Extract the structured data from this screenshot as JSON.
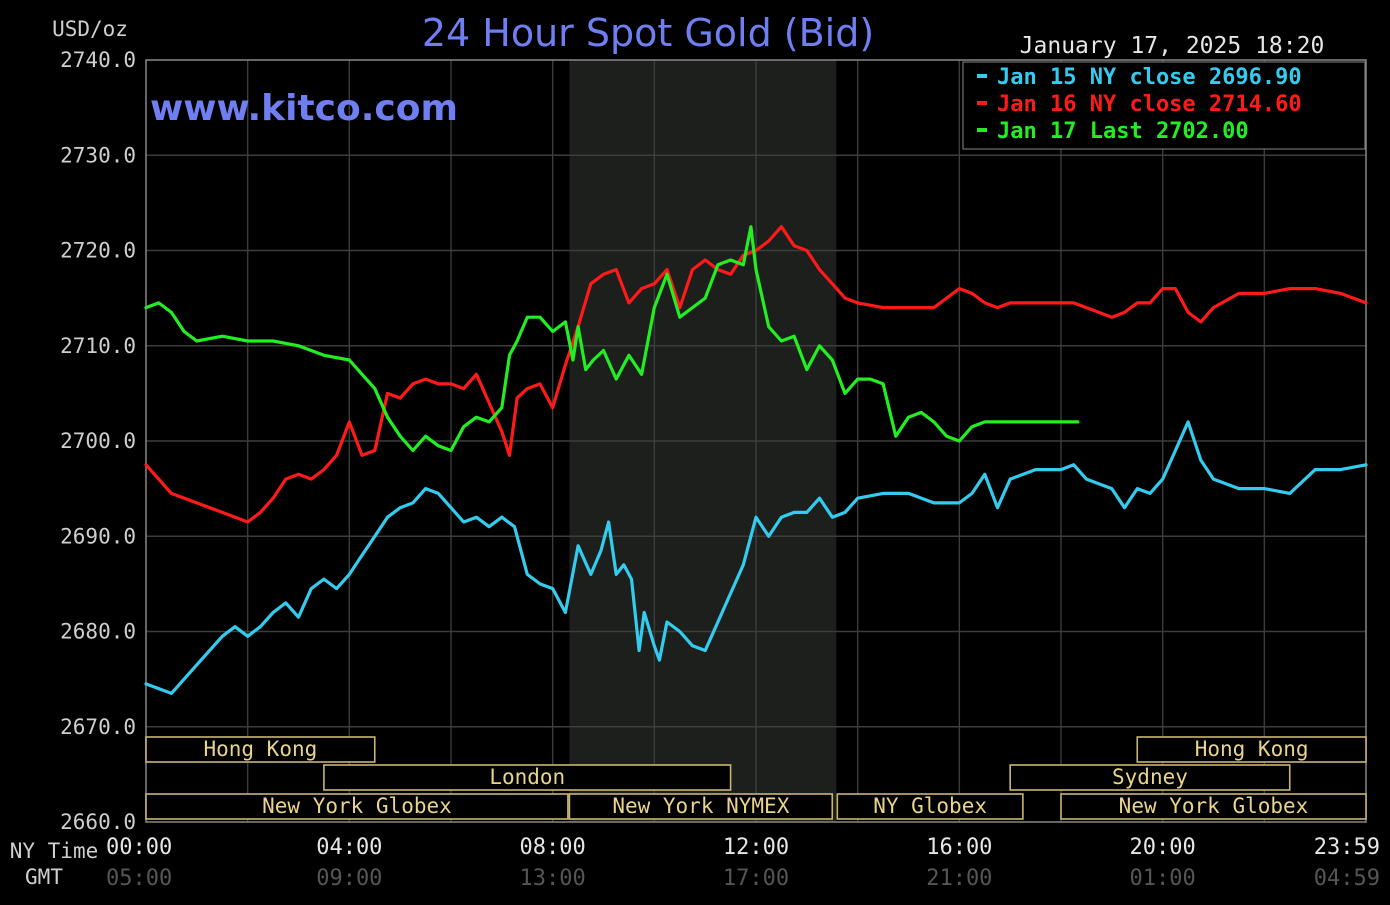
{
  "chart_data": {
    "type": "line",
    "title": "24 Hour Spot Gold (Bid)",
    "unit_label": "USD/oz",
    "watermark": "www.kitco.com",
    "timestamp": "January 17, 2025 18:20",
    "ylim": [
      2660,
      2740
    ],
    "y_ticks": [
      "2740.0",
      "2730.0",
      "2720.0",
      "2710.0",
      "2700.0",
      "2690.0",
      "2680.0",
      "2670.0",
      "2660.0"
    ],
    "x_axis_ny_label": "NY Time",
    "x_axis_gmt_label": "GMT",
    "x_ticks_ny": [
      "00:00",
      "04:00",
      "08:00",
      "12:00",
      "16:00",
      "20:00",
      "23:59"
    ],
    "x_ticks_gmt": [
      "05:00",
      "09:00",
      "13:00",
      "17:00",
      "21:00",
      "01:00",
      "04:59"
    ],
    "x_tick_hours": [
      0,
      4,
      8,
      12,
      16,
      20,
      24
    ],
    "shaded_period_hours": [
      8.33,
      13.58
    ],
    "grid": true,
    "legend": [
      {
        "label": "Jan 15 NY close 2696.90",
        "color": "#33ccee"
      },
      {
        "label": "Jan 16 NY close 2714.60",
        "color": "#ff1a1a"
      },
      {
        "label": "Jan 17 Last 2702.00",
        "color": "#22ee22"
      }
    ],
    "sessions": [
      {
        "label": "Hong Kong",
        "start": 0,
        "end": 4.5
      },
      {
        "label": "Hong Kong",
        "start": 19.5,
        "end": 24
      },
      {
        "label": "London",
        "start": 3.5,
        "end": 11.5
      },
      {
        "label": "Sydney",
        "start": 17.0,
        "end": 22.5
      },
      {
        "label": "New York Globex",
        "start": 0,
        "end": 8.3
      },
      {
        "label": "New York NYMEX",
        "start": 8.33,
        "end": 13.5
      },
      {
        "label": "NY Globex",
        "start": 13.6,
        "end": 17.25
      },
      {
        "label": "New York Globex",
        "start": 18.0,
        "end": 24
      }
    ],
    "series": [
      {
        "name": "Jan 15",
        "color": "#33ccee",
        "x": [
          0,
          0.5,
          1,
          1.5,
          1.75,
          2,
          2.25,
          2.5,
          2.75,
          3,
          3.25,
          3.5,
          3.75,
          4,
          4.25,
          4.5,
          4.75,
          5,
          5.25,
          5.5,
          5.75,
          6,
          6.25,
          6.5,
          6.75,
          7,
          7.25,
          7.5,
          7.75,
          8,
          8.25,
          8.5,
          8.75,
          8.95,
          9.1,
          9.25,
          9.4,
          9.55,
          9.7,
          9.8,
          10,
          10.1,
          10.25,
          10.5,
          10.75,
          11,
          11.25,
          11.5,
          11.75,
          12,
          12.25,
          12.5,
          12.75,
          13,
          13.25,
          13.5,
          13.75,
          14,
          14.5,
          15,
          15.5,
          16,
          16.25,
          16.5,
          16.75,
          17,
          17.5,
          18,
          18.25,
          18.5,
          19,
          19.25,
          19.5,
          19.75,
          20,
          20.25,
          20.5,
          20.75,
          21,
          21.5,
          22,
          22.5,
          23,
          23.5,
          24
        ],
        "values": [
          2674.5,
          2673.5,
          2676.5,
          2679.5,
          2680.5,
          2679.5,
          2680.5,
          2682,
          2683,
          2681.5,
          2684.5,
          2685.5,
          2684.5,
          2686,
          2688,
          2690,
          2692,
          2693,
          2693.5,
          2695,
          2694.5,
          2693,
          2691.5,
          2692,
          2691,
          2692,
          2691,
          2686,
          2685,
          2684.5,
          2682,
          2689,
          2686,
          2688.5,
          2691.5,
          2686,
          2687,
          2685.5,
          2678,
          2682,
          2678.5,
          2677,
          2681,
          2680,
          2678.5,
          2678,
          2681,
          2684,
          2687,
          2692,
          2690,
          2692,
          2692.5,
          2692.5,
          2694,
          2692,
          2692.5,
          2694,
          2694.5,
          2694.5,
          2693.5,
          2693.5,
          2694.5,
          2696.5,
          2693,
          2696,
          2697,
          2697,
          2697.5,
          2696,
          2695,
          2693,
          2695,
          2694.5,
          2696,
          2699,
          2702,
          2698,
          2696,
          2695,
          2695,
          2694.5,
          2697,
          2697,
          2697.5
        ]
      },
      {
        "name": "Jan 16",
        "color": "#ff1a1a",
        "x": [
          0,
          0.5,
          1,
          1.5,
          2,
          2.25,
          2.5,
          2.75,
          3,
          3.25,
          3.5,
          3.75,
          4,
          4.25,
          4.5,
          4.75,
          5,
          5.25,
          5.5,
          5.75,
          6,
          6.25,
          6.5,
          6.75,
          7,
          7.15,
          7.3,
          7.5,
          7.75,
          8,
          8.25,
          8.5,
          8.75,
          9,
          9.25,
          9.5,
          9.75,
          10,
          10.25,
          10.5,
          10.75,
          11,
          11.25,
          11.5,
          11.75,
          12,
          12.25,
          12.5,
          12.75,
          13,
          13.25,
          13.5,
          13.75,
          14,
          14.5,
          15,
          15.5,
          16,
          16.25,
          16.5,
          16.75,
          17,
          17.5,
          18,
          18.25,
          18.5,
          19,
          19.25,
          19.5,
          19.75,
          20,
          20.25,
          20.5,
          20.75,
          21,
          21.5,
          22,
          22.5,
          23,
          23.5,
          24
        ],
        "values": [
          2697.5,
          2694.5,
          2693.5,
          2692.5,
          2691.5,
          2692.5,
          2694,
          2696,
          2696.5,
          2696,
          2697,
          2698.5,
          2702,
          2698.5,
          2699,
          2705,
          2704.5,
          2706,
          2706.5,
          2706,
          2706,
          2705.5,
          2707,
          2704,
          2701,
          2698.5,
          2704.5,
          2705.5,
          2706,
          2703.5,
          2708,
          2712,
          2716.5,
          2717.5,
          2718,
          2714.5,
          2716,
          2716.5,
          2718,
          2714,
          2718,
          2719,
          2718,
          2717.5,
          2719.5,
          2720,
          2721,
          2722.5,
          2720.5,
          2720,
          2718,
          2716.5,
          2715,
          2714.5,
          2714,
          2714,
          2714,
          2716,
          2715.5,
          2714.5,
          2714,
          2714.5,
          2714.5,
          2714.5,
          2714.5,
          2714,
          2713,
          2713.5,
          2714.5,
          2714.5,
          2716,
          2716,
          2713.5,
          2712.5,
          2714,
          2715.5,
          2715.5,
          2716,
          2716,
          2715.5,
          2714.5
        ]
      },
      {
        "name": "Jan 17",
        "color": "#22ee22",
        "x": [
          0,
          0.25,
          0.5,
          0.75,
          1,
          1.5,
          2,
          2.5,
          3,
          3.5,
          4,
          4.25,
          4.5,
          4.75,
          5,
          5.25,
          5.5,
          5.75,
          6,
          6.25,
          6.5,
          6.75,
          7,
          7.15,
          7.3,
          7.5,
          7.75,
          8,
          8.25,
          8.4,
          8.5,
          8.65,
          8.8,
          9,
          9.25,
          9.5,
          9.75,
          10,
          10.25,
          10.5,
          10.75,
          11,
          11.25,
          11.5,
          11.75,
          11.9,
          12,
          12.25,
          12.5,
          12.75,
          13,
          13.25,
          13.5,
          13.75,
          14,
          14.25,
          14.5,
          14.75,
          15,
          15.25,
          15.5,
          15.75,
          16,
          16.25,
          16.5,
          16.75,
          17,
          17.5,
          18,
          18.25,
          18.33
        ],
        "values": [
          2714,
          2714.5,
          2713.5,
          2711.5,
          2710.5,
          2711,
          2710.5,
          2710.5,
          2710,
          2709,
          2708.5,
          2707,
          2705.5,
          2702.5,
          2700.5,
          2699,
          2700.5,
          2699.5,
          2699,
          2701.5,
          2702.5,
          2702,
          2703.5,
          2709,
          2710.5,
          2713,
          2713,
          2711.5,
          2712.5,
          2708.5,
          2712,
          2707.5,
          2708.5,
          2709.5,
          2706.5,
          2709,
          2707,
          2714,
          2717.5,
          2713,
          2714,
          2715,
          2718.5,
          2719,
          2718.5,
          2722.5,
          2718,
          2712,
          2710.5,
          2711,
          2707.5,
          2710,
          2708.5,
          2705,
          2706.5,
          2706.5,
          2706,
          2700.5,
          2702.5,
          2703,
          2702,
          2700.5,
          2700,
          2701.5,
          2702,
          2702,
          2702,
          2702,
          2702,
          2702,
          2702
        ]
      }
    ]
  }
}
